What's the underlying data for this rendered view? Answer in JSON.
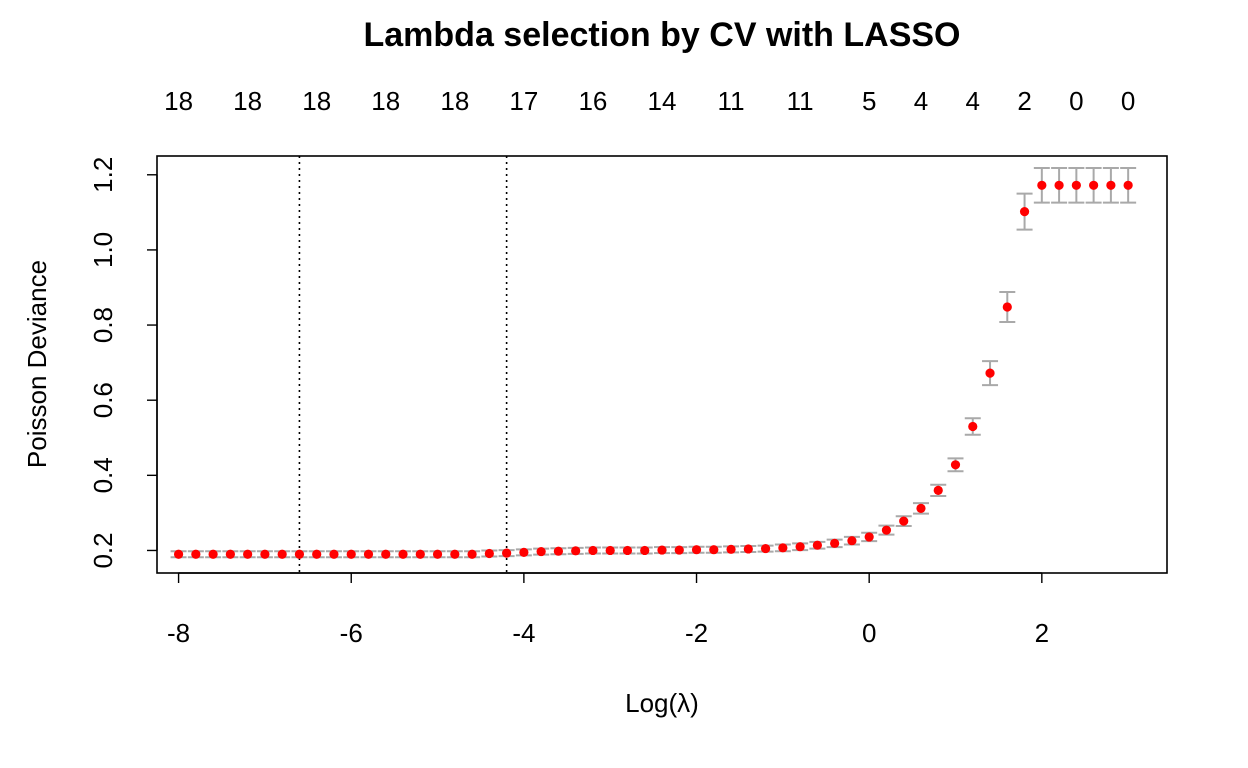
{
  "chart_data": {
    "type": "scatter",
    "title": "Lambda selection by CV with LASSO",
    "xlabel": "Log(λ)",
    "ylabel": "Poisson Deviance",
    "xlim": [
      -8.25,
      3.45
    ],
    "ylim": [
      0.14,
      1.25
    ],
    "x_ticks": [
      -8,
      -6,
      -4,
      -2,
      0,
      2
    ],
    "y_ticks": [
      0.2,
      0.4,
      0.6,
      0.8,
      1.0,
      1.2
    ],
    "y_tick_labels": [
      "0.2",
      "0.4",
      "0.6",
      "0.8",
      "1.0",
      "1.2"
    ],
    "vertical_lines": [
      -6.6,
      -4.2
    ],
    "top_axis": {
      "positions": [
        -8,
        -7.2,
        -6.4,
        -5.6,
        -4.8,
        -4.0,
        -3.2,
        -2.4,
        -1.6,
        -0.8,
        0,
        0.6,
        1.2,
        1.8,
        2.4,
        3.0
      ],
      "labels": [
        "18",
        "18",
        "18",
        "18",
        "18",
        "17",
        "16",
        "14",
        "11",
        "11",
        "5",
        "4",
        "4",
        "2",
        "0",
        "0"
      ]
    },
    "series": [
      {
        "x": [
          -8.0,
          -7.8,
          -7.6,
          -7.4,
          -7.2,
          -7.0,
          -6.8,
          -6.6,
          -6.4,
          -6.2,
          -6.0,
          -5.8,
          -5.6,
          -5.4,
          -5.2,
          -5.0,
          -4.8,
          -4.6,
          -4.4,
          -4.2,
          -4.0,
          -3.8,
          -3.6,
          -3.4,
          -3.2,
          -3.0,
          -2.8,
          -2.6,
          -2.4,
          -2.2,
          -2.0,
          -1.8,
          -1.6,
          -1.4,
          -1.2,
          -1.0,
          -0.8,
          -0.6,
          -0.4,
          -0.2,
          0.0,
          0.2,
          0.4,
          0.6,
          0.8,
          1.0,
          1.2,
          1.4,
          1.6,
          1.8,
          2.0,
          2.2,
          2.4,
          2.6,
          2.8,
          3.0
        ],
        "y": [
          0.19,
          0.19,
          0.19,
          0.19,
          0.19,
          0.19,
          0.19,
          0.19,
          0.19,
          0.19,
          0.19,
          0.19,
          0.19,
          0.19,
          0.19,
          0.19,
          0.19,
          0.19,
          0.192,
          0.193,
          0.195,
          0.197,
          0.198,
          0.199,
          0.2,
          0.2,
          0.2,
          0.2,
          0.201,
          0.201,
          0.202,
          0.202,
          0.203,
          0.204,
          0.205,
          0.207,
          0.21,
          0.214,
          0.219,
          0.226,
          0.236,
          0.254,
          0.278,
          0.312,
          0.36,
          0.428,
          0.53,
          0.672,
          0.848,
          1.102,
          1.172,
          1.172,
          1.172,
          1.172,
          1.172,
          1.172
        ],
        "err": [
          0.008,
          0.008,
          0.008,
          0.008,
          0.008,
          0.008,
          0.008,
          0.008,
          0.008,
          0.008,
          0.008,
          0.008,
          0.008,
          0.008,
          0.008,
          0.008,
          0.008,
          0.008,
          0.008,
          0.008,
          0.008,
          0.008,
          0.008,
          0.008,
          0.008,
          0.008,
          0.008,
          0.008,
          0.008,
          0.008,
          0.008,
          0.008,
          0.008,
          0.008,
          0.008,
          0.009,
          0.009,
          0.009,
          0.01,
          0.01,
          0.011,
          0.012,
          0.013,
          0.014,
          0.015,
          0.017,
          0.022,
          0.032,
          0.04,
          0.048,
          0.046,
          0.046,
          0.046,
          0.046,
          0.046,
          0.046
        ]
      }
    ],
    "point_color": "#ff0000",
    "errbar_color": "#a9a9a9",
    "grid": false,
    "legend": "none"
  }
}
